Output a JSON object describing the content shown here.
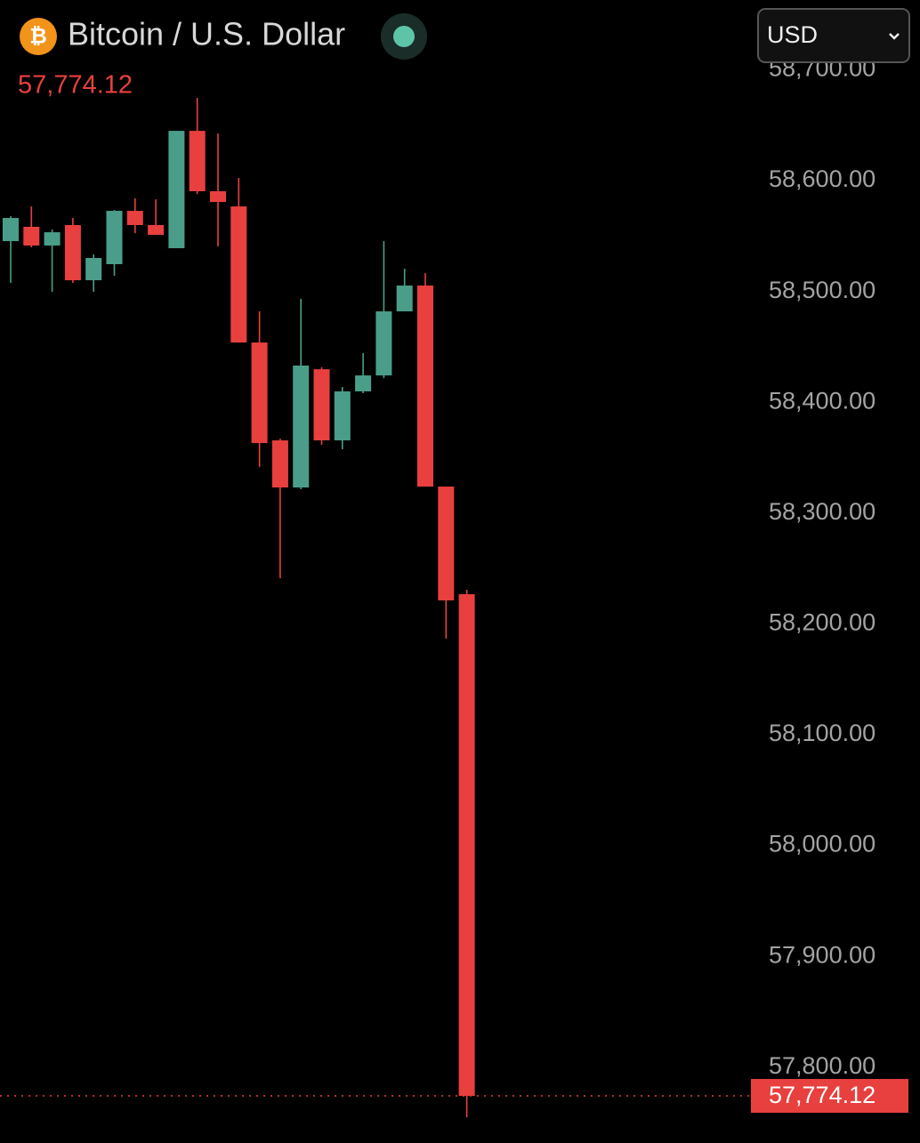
{
  "chart_data": {
    "type": "candlestick",
    "title": "Bitcoin / U.S. Dollar",
    "last_price": {
      "value": 57774.12,
      "label": "57,774.12"
    },
    "open": [
      58545.4,
      58558.3,
      58541.4,
      58559.9,
      58510.1,
      58524.6,
      58572.7,
      58559.9,
      58539.0,
      58644.9,
      58590.4,
      58576.7,
      58453.9,
      58365.6,
      58323.1,
      58429.8,
      58365.6,
      58409.8,
      58424.2,
      58482.0,
      58505.3,
      58323.9,
      58226.8
    ],
    "high": [
      58567.9,
      58576.7,
      58555.9,
      58566.3,
      58533.4,
      58573.5,
      58584.0,
      58583.1,
      58644.9,
      58674.6,
      58642.5,
      58602.4,
      58482.0,
      58367.2,
      58493.3,
      58431.5,
      58413.8,
      58444.3,
      58545.4,
      58520.5,
      58516.5,
      58323.9,
      58230.8
    ],
    "low": [
      58507.7,
      58539.8,
      58499.7,
      58507.7,
      58499.7,
      58514.1,
      58552.6,
      58551.0,
      58539.0,
      58588.0,
      58540.6,
      58453.9,
      58341.6,
      58241.2,
      58321.5,
      58361.6,
      58357.6,
      58408.2,
      58421.8,
      58482.0,
      58323.9,
      58186.7,
      57754.9
    ],
    "close": [
      58566.3,
      58541.4,
      58553.4,
      58510.1,
      58530.2,
      58572.7,
      58559.9,
      58551.0,
      58644.9,
      58590.4,
      58580.7,
      58453.9,
      58363.2,
      58323.1,
      58433.1,
      58365.6,
      58409.8,
      58424.2,
      58482.0,
      58505.3,
      58323.9,
      58221.2,
      57774.12
    ],
    "up_color": "#4a9e89",
    "down_color": "#e8403e",
    "ylim": [
      57735.6,
      58710.8
    ],
    "yticks": [
      {
        "value": 57800,
        "label": "57,800.00"
      },
      {
        "value": 57900,
        "label": "57,900.00"
      },
      {
        "value": 58000,
        "label": "58,000.00"
      },
      {
        "value": 58100,
        "label": "58,100.00"
      },
      {
        "value": 58200,
        "label": "58,200.00"
      },
      {
        "value": 58300,
        "label": "58,300.00"
      },
      {
        "value": 58400,
        "label": "58,400.00"
      },
      {
        "value": 58500,
        "label": "58,500.00"
      },
      {
        "value": 58600,
        "label": "58,600.00"
      },
      {
        "value": 58700,
        "label": "58,700.00"
      }
    ]
  },
  "currency_select": "USD"
}
